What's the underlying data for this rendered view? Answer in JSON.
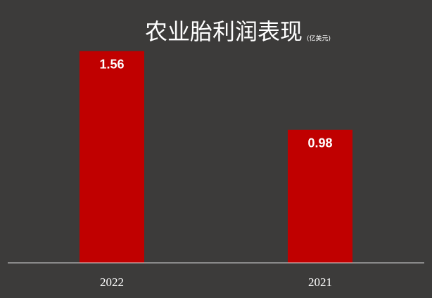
{
  "chart_data": {
    "type": "bar",
    "title": "农业胎利润表现",
    "subtitle": "(亿美元)",
    "categories": [
      "2022",
      "2021"
    ],
    "values": [
      1.56,
      0.98
    ],
    "color": "#c00000",
    "ylim": [
      0,
      1.6
    ]
  }
}
